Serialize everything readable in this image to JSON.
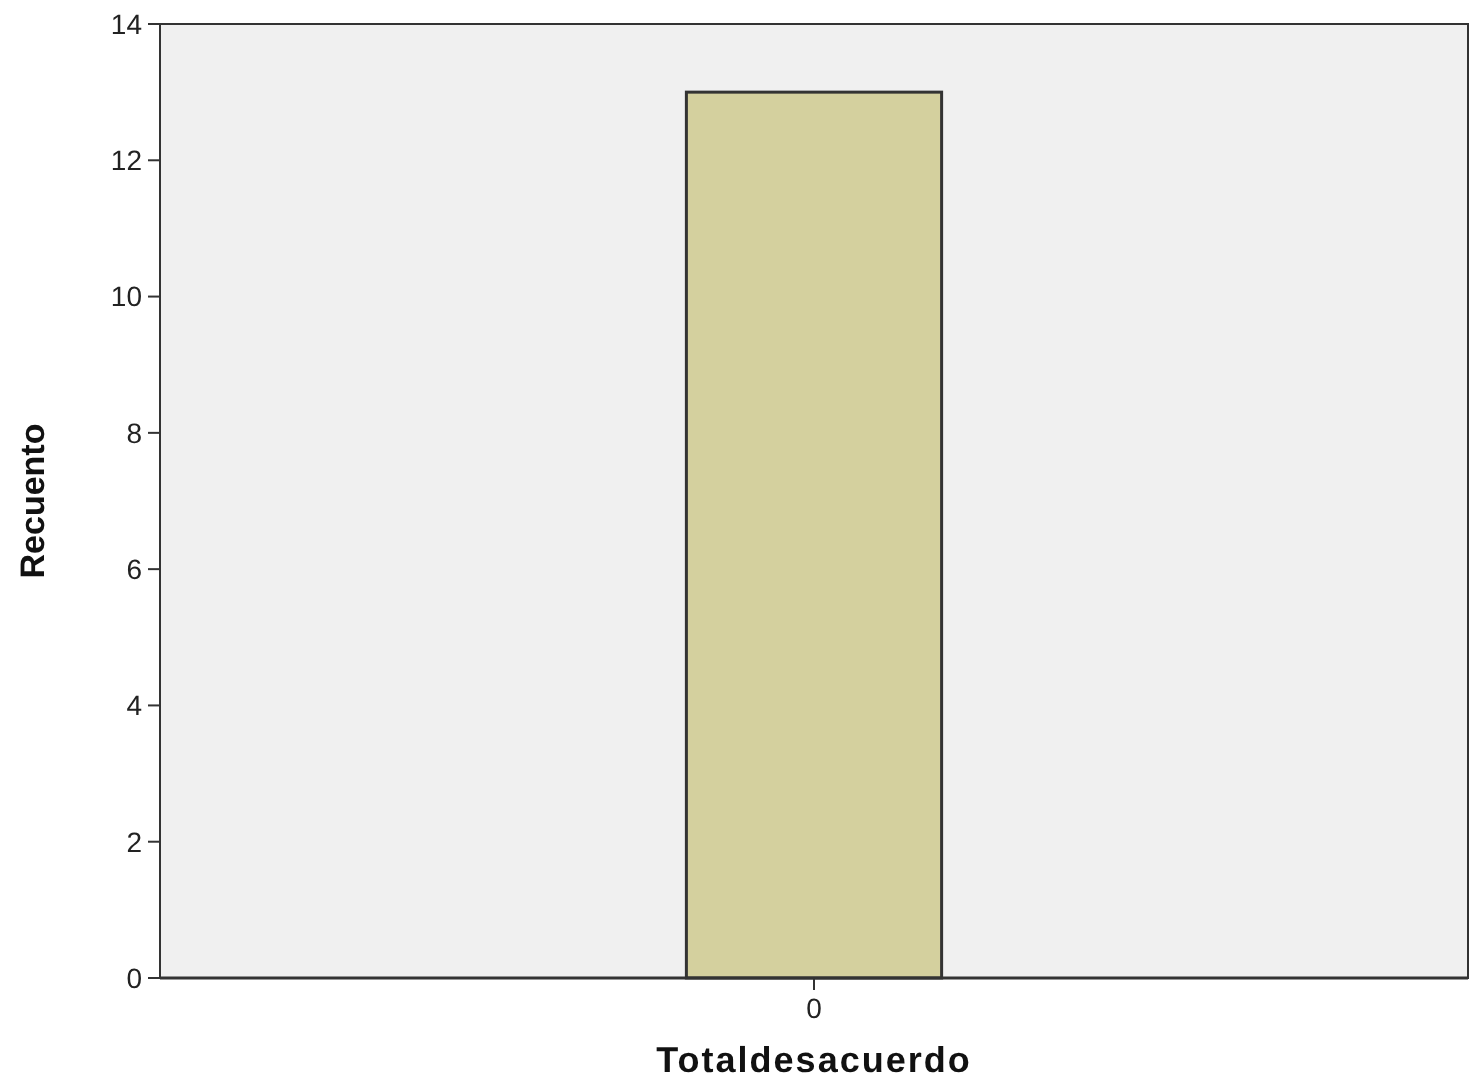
{
  "chart_data": {
    "type": "bar",
    "xlabel": "Totaldesacuerdo",
    "ylabel": "Recuento",
    "categories": [
      "0"
    ],
    "values": [
      13
    ],
    "color": "#d4d09e",
    "ylim": [
      0,
      14
    ],
    "yticks": [
      0,
      2,
      4,
      6,
      8,
      10,
      12,
      14
    ],
    "grid": false
  }
}
